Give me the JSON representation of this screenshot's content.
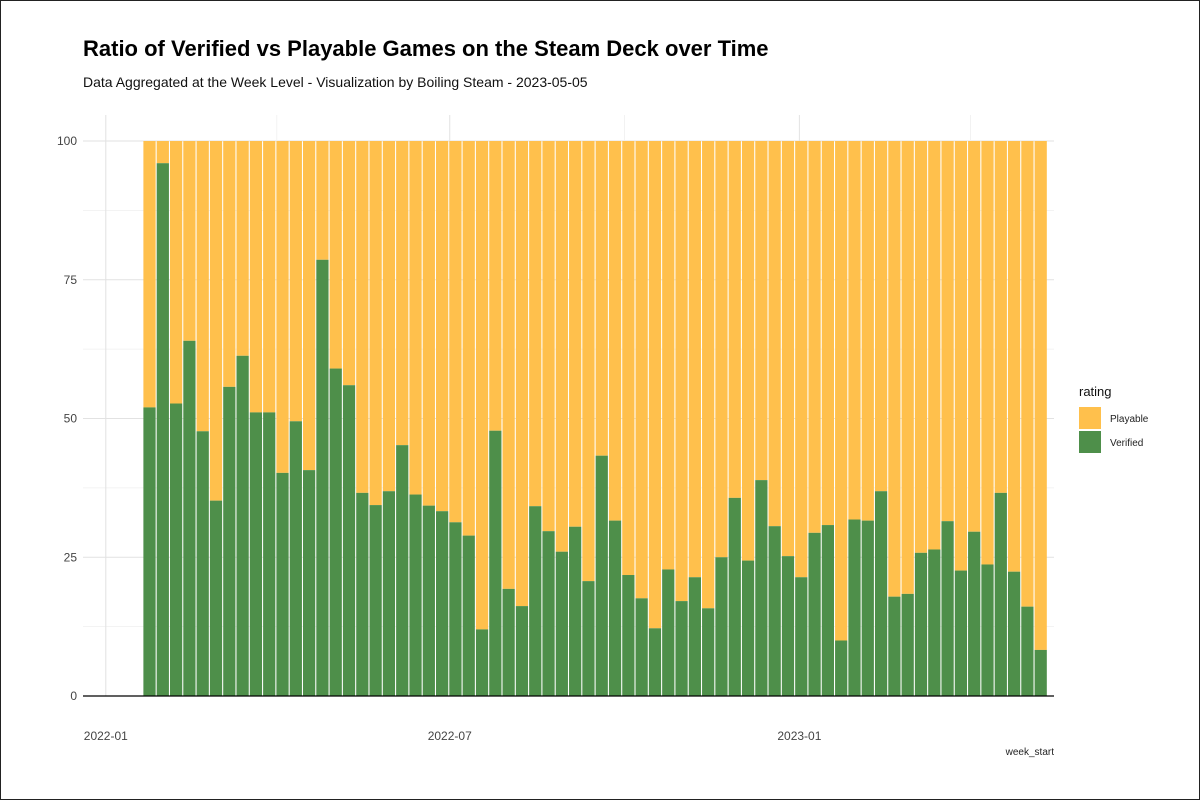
{
  "chart_data": {
    "type": "bar",
    "stacked": true,
    "title": "Ratio of Verified vs Playable Games on the Steam Deck over Time",
    "subtitle": "Data Aggregated at the Week Level - Visualization by Boiling Steam - 2023-05-05",
    "xlabel": "week_start",
    "ylabel": "",
    "ylim": [
      0,
      100
    ],
    "y_ticks": [
      0,
      25,
      50,
      75,
      100
    ],
    "x_range": [
      "2021-12-20",
      "2023-05-15"
    ],
    "x_ticks": [
      {
        "date": "2022-01-01",
        "label": "2022-01"
      },
      {
        "date": "2022-07-01",
        "label": "2022-07"
      },
      {
        "date": "2023-01-01",
        "label": "2023-01"
      }
    ],
    "x_minor_ticks": [
      "2022-04-01",
      "2022-10-01",
      "2023-04-01"
    ],
    "grid": true,
    "legend": {
      "title": "rating",
      "placement": "right"
    },
    "colors": {
      "Playable": "#FFC04C",
      "Verified": "#4E8F4A"
    },
    "series": [
      {
        "name": "Verified",
        "values": [
          52,
          96,
          52.7,
          64,
          47.7,
          35.2,
          55.7,
          61.3,
          51.1,
          51.1,
          40.2,
          49.5,
          40.7,
          78.6,
          59,
          56,
          36.6,
          34.4,
          36.9,
          45.2,
          36.3,
          34.3,
          33.3,
          31.3,
          28.9,
          12,
          47.8,
          19.3,
          16.2,
          34.2,
          29.7,
          26,
          30.5,
          20.7,
          43.3,
          31.6,
          21.8,
          17.6,
          12.2,
          22.8,
          17.1,
          21.4,
          15.8,
          25,
          35.7,
          24.4,
          38.9,
          30.6,
          25.2,
          21.4,
          29.4,
          30.8,
          10,
          31.8,
          31.6,
          36.9,
          17.9,
          18.4,
          25.8,
          26.4,
          31.5,
          22.6,
          29.6,
          23.7,
          36.6,
          22.4,
          16.1,
          8.3
        ]
      },
      {
        "name": "Playable",
        "values": [
          48,
          4,
          47.3,
          36,
          52.3,
          64.8,
          44.3,
          38.7,
          48.9,
          48.9,
          59.8,
          50.5,
          59.3,
          21.4,
          41,
          44,
          63.4,
          65.6,
          63.1,
          54.8,
          63.7,
          65.7,
          66.7,
          68.7,
          71.1,
          88,
          52.2,
          80.7,
          83.8,
          65.8,
          70.3,
          74,
          69.5,
          79.3,
          56.7,
          68.4,
          78.2,
          82.4,
          87.8,
          77.2,
          82.9,
          78.6,
          84.2,
          75,
          64.3,
          75.6,
          61.1,
          69.4,
          74.8,
          78.6,
          70.6,
          69.2,
          90,
          68.2,
          68.4,
          63.1,
          82.1,
          81.6,
          74.2,
          73.6,
          68.5,
          77.4,
          70.4,
          76.3,
          63.4,
          77.6,
          83.9,
          91.7
        ]
      }
    ],
    "first_week": "2022-01-24",
    "week_step_days": 7
  }
}
